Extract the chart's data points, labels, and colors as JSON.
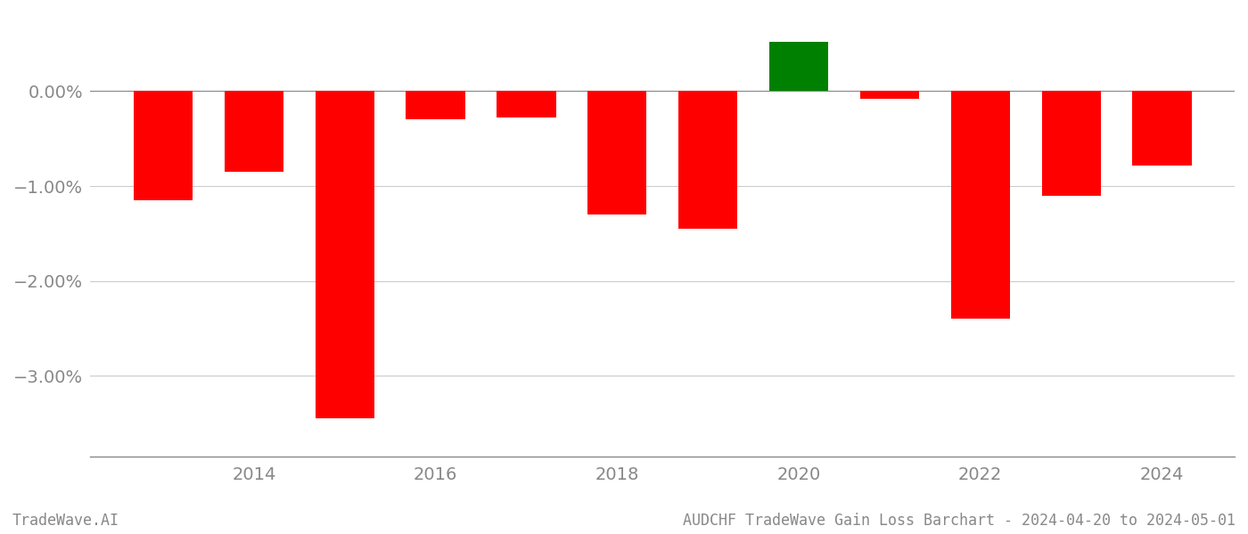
{
  "years": [
    2013,
    2014,
    2015,
    2016,
    2017,
    2018,
    2019,
    2020,
    2021,
    2022,
    2023,
    2024
  ],
  "values": [
    -1.15,
    -0.85,
    -3.45,
    -0.3,
    -0.28,
    -1.3,
    -1.45,
    0.52,
    -0.08,
    -2.4,
    -1.1,
    -0.78
  ],
  "colors": [
    "#ff0000",
    "#ff0000",
    "#ff0000",
    "#ff0000",
    "#ff0000",
    "#ff0000",
    "#ff0000",
    "#008000",
    "#ff0000",
    "#ff0000",
    "#ff0000",
    "#ff0000"
  ],
  "ylim": [
    -3.85,
    0.82
  ],
  "yticks": [
    0.0,
    -1.0,
    -2.0,
    -3.0
  ],
  "ytick_labels": [
    "0.00%",
    "−1.00%",
    "−2.00%",
    "−3.00%"
  ],
  "xtick_years": [
    2014,
    2016,
    2018,
    2020,
    2022,
    2024
  ],
  "bar_width": 0.65,
  "background_color": "#ffffff",
  "grid_color": "#cccccc",
  "bottom_left_label": "TradeWave.AI",
  "bottom_right_label": "AUDCHF TradeWave Gain Loss Barchart - 2024-04-20 to 2024-05-01",
  "spine_color": "#888888",
  "tick_fontsize": 14,
  "label_fontsize": 12
}
